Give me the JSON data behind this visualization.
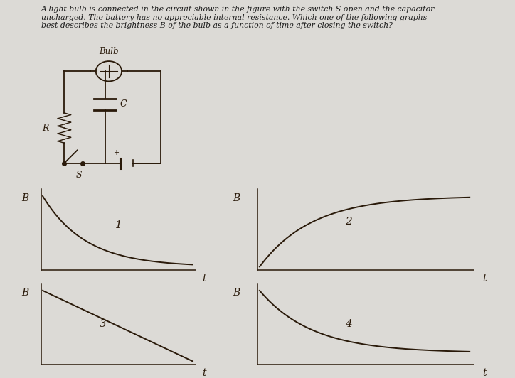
{
  "background_color": "#dcdad6",
  "text_color": "#1a1a1a",
  "question_text": "A light bulb is connected in the circuit shown in the figure with the switch S open and the capacitor\nuncharged. The battery has no appreciable internal resistance. Which one of the following graphs\nbest describes the brightness B of the bulb as a function of time after closing the switch?",
  "question_fontsize": 7.8,
  "circuit_label": "Bulb",
  "graph_labels": [
    "1",
    "2",
    "3",
    "4"
  ],
  "axis_label_B": "B",
  "axis_label_t": "t",
  "line_color": "#2a1a0a",
  "graph_bg": "#dcdad6",
  "label_fontsize": 10,
  "number_fontsize": 11
}
